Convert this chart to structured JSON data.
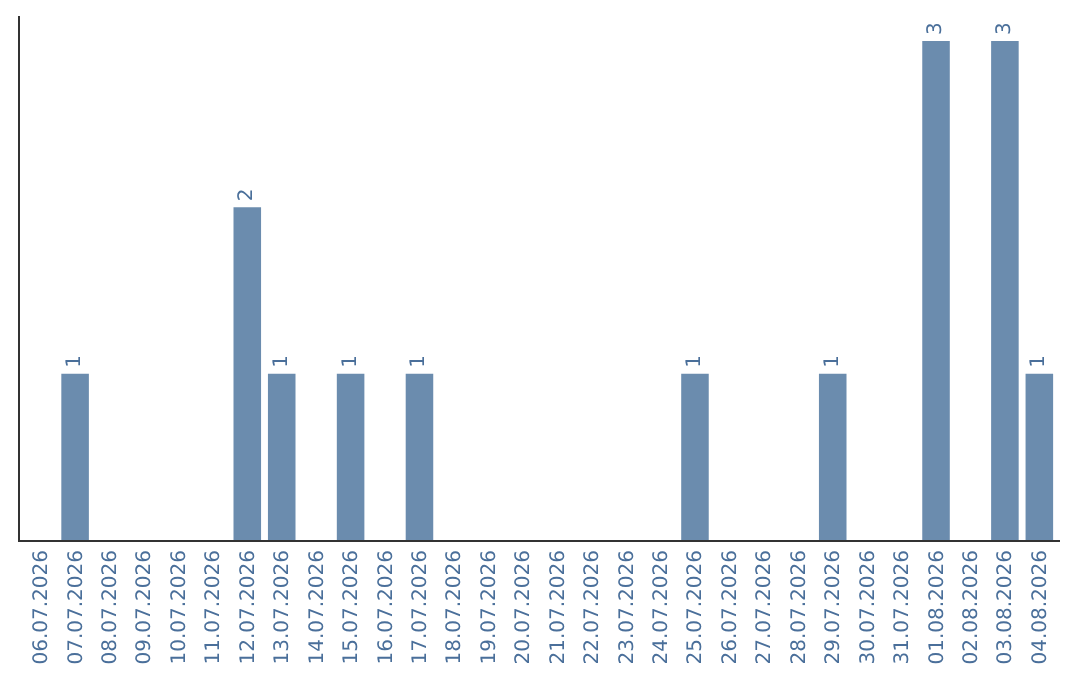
{
  "chart_data": {
    "type": "bar",
    "categories": [
      "06.07.2026",
      "07.07.2026",
      "08.07.2026",
      "09.07.2026",
      "10.07.2026",
      "11.07.2026",
      "12.07.2026",
      "13.07.2026",
      "14.07.2026",
      "15.07.2026",
      "16.07.2026",
      "17.07.2026",
      "18.07.2026",
      "19.07.2026",
      "20.07.2026",
      "21.07.2026",
      "22.07.2026",
      "23.07.2026",
      "24.07.2026",
      "25.07.2026",
      "26.07.2026",
      "27.07.2026",
      "28.07.2026",
      "29.07.2026",
      "30.07.2026",
      "31.07.2026",
      "01.08.2026",
      "02.08.2026",
      "03.08.2026",
      "04.08.2026"
    ],
    "values": [
      0,
      1,
      0,
      0,
      0,
      0,
      2,
      1,
      0,
      1,
      0,
      1,
      0,
      0,
      0,
      0,
      0,
      0,
      0,
      1,
      0,
      0,
      0,
      1,
      0,
      0,
      3,
      0,
      3,
      1
    ],
    "value_labels": [
      null,
      "1",
      null,
      null,
      null,
      null,
      "2",
      "1",
      null,
      "1",
      null,
      "1",
      null,
      null,
      null,
      null,
      null,
      null,
      null,
      "1",
      null,
      null,
      null,
      "1",
      null,
      null,
      "3",
      null,
      "3",
      "1"
    ],
    "color": "#6b8cae",
    "tick_labels": "x",
    "legend": false
  }
}
